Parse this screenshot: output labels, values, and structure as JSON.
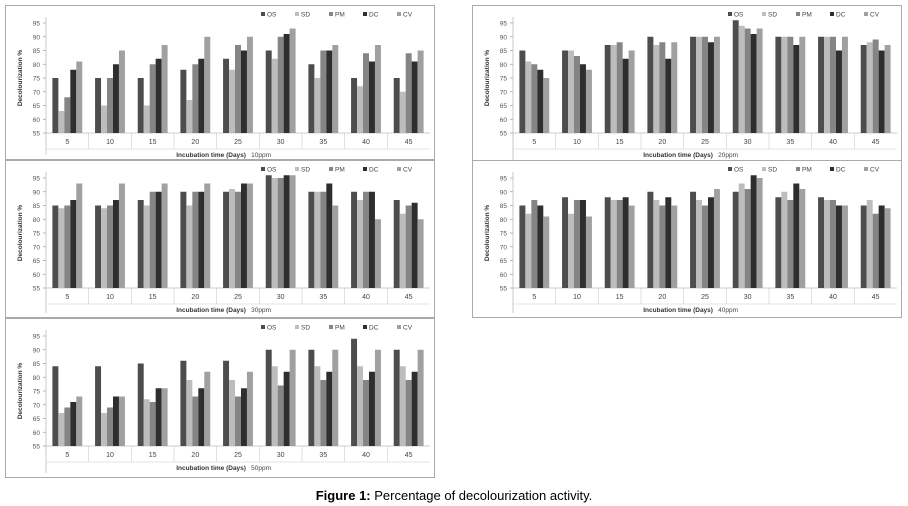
{
  "caption": {
    "label": "Figure 1:",
    "text": " Percentage of decolourization activity."
  },
  "colors": {
    "OS": "#4d4d4d",
    "SD": "#bdbdbd",
    "PM": "#858585",
    "DC": "#2e2e2e",
    "CV": "#a0a0a0"
  },
  "chart_data": [
    {
      "type": "bar",
      "title": "",
      "xlabel": "Incubation time (Days)",
      "xnote": "10ppm",
      "ylabel": "Decolourization %",
      "ylim": [
        55,
        95
      ],
      "yticks": [
        "55",
        "60",
        "65",
        "70",
        "75",
        "80",
        "85",
        "90",
        "95"
      ],
      "legend": "top-right",
      "categories": [
        "5",
        "10",
        "15",
        "20",
        "25",
        "30",
        "35",
        "40",
        "45"
      ],
      "series": [
        {
          "name": "OS",
          "values": [
            75,
            75,
            75,
            78,
            82,
            85,
            80,
            75,
            75
          ]
        },
        {
          "name": "SD",
          "values": [
            63,
            65,
            65,
            67,
            78,
            82,
            75,
            72,
            70
          ]
        },
        {
          "name": "PM",
          "values": [
            68,
            75,
            80,
            80,
            87,
            90,
            85,
            84,
            84
          ]
        },
        {
          "name": "DC",
          "values": [
            78,
            80,
            82,
            82,
            85,
            91,
            85,
            81,
            81
          ]
        },
        {
          "name": "CV",
          "values": [
            81,
            85,
            87,
            90,
            90,
            93,
            87,
            87,
            85
          ]
        }
      ]
    },
    {
      "type": "bar",
      "title": "",
      "xlabel": "Incubation time (Days)",
      "xnote": "20ppm",
      "ylabel": "Decolourization %",
      "ylim": [
        55,
        95
      ],
      "yticks": [
        "55",
        "60",
        "65",
        "70",
        "75",
        "80",
        "85",
        "90",
        "95"
      ],
      "legend": "top-right",
      "categories": [
        "5",
        "10",
        "15",
        "20",
        "25",
        "30",
        "35",
        "40",
        "45"
      ],
      "series": [
        {
          "name": "OS",
          "values": [
            85,
            85,
            87,
            90,
            90,
            96,
            90,
            90,
            87
          ]
        },
        {
          "name": "SD",
          "values": [
            81,
            85,
            87,
            87,
            90,
            94,
            90,
            90,
            88
          ]
        },
        {
          "name": "PM",
          "values": [
            80,
            83,
            88,
            88,
            90,
            93,
            90,
            90,
            89
          ]
        },
        {
          "name": "DC",
          "values": [
            78,
            80,
            82,
            82,
            88,
            91,
            87,
            85,
            85
          ]
        },
        {
          "name": "CV",
          "values": [
            75,
            78,
            85,
            88,
            90,
            93,
            90,
            90,
            87
          ]
        }
      ]
    },
    {
      "type": "bar",
      "title": "",
      "xlabel": "Incubation time (Days)",
      "xnote": "30ppm",
      "ylabel": "Decolourization %",
      "ylim": [
        55,
        95
      ],
      "yticks": [
        "55",
        "60",
        "65",
        "70",
        "75",
        "80",
        "85",
        "90",
        "95"
      ],
      "legend": "top-right",
      "categories": [
        "5",
        "10",
        "15",
        "20",
        "25",
        "30",
        "35",
        "40",
        "45"
      ],
      "series": [
        {
          "name": "OS",
          "values": [
            85,
            85,
            87,
            90,
            90,
            96,
            90,
            90,
            87
          ]
        },
        {
          "name": "SD",
          "values": [
            84,
            84,
            85,
            85,
            91,
            95,
            90,
            87,
            82
          ]
        },
        {
          "name": "PM",
          "values": [
            85,
            85,
            90,
            90,
            90,
            95,
            90,
            90,
            85
          ]
        },
        {
          "name": "DC",
          "values": [
            87,
            87,
            90,
            90,
            93,
            96,
            93,
            90,
            86
          ]
        },
        {
          "name": "CV",
          "values": [
            93,
            93,
            93,
            93,
            93,
            96,
            85,
            80,
            80
          ]
        }
      ]
    },
    {
      "type": "bar",
      "title": "",
      "xlabel": "Incubation time (Days)",
      "xnote": "40ppm",
      "ylabel": "Decolourization %",
      "ylim": [
        55,
        95
      ],
      "yticks": [
        "55",
        "60",
        "65",
        "70",
        "75",
        "80",
        "85",
        "90",
        "95"
      ],
      "legend": "top-right",
      "categories": [
        "5",
        "10",
        "15",
        "20",
        "25",
        "30",
        "35",
        "40",
        "45"
      ],
      "series": [
        {
          "name": "OS",
          "values": [
            85,
            88,
            88,
            90,
            90,
            90,
            88,
            88,
            85
          ]
        },
        {
          "name": "SD",
          "values": [
            82,
            82,
            87,
            87,
            87,
            93,
            90,
            87,
            87
          ]
        },
        {
          "name": "PM",
          "values": [
            87,
            87,
            87,
            85,
            85,
            91,
            87,
            87,
            82
          ]
        },
        {
          "name": "DC",
          "values": [
            85,
            87,
            88,
            88,
            88,
            96,
            93,
            85,
            85
          ]
        },
        {
          "name": "CV",
          "values": [
            81,
            81,
            85,
            85,
            91,
            95,
            91,
            85,
            84
          ]
        }
      ]
    },
    {
      "type": "bar",
      "title": "",
      "xlabel": "Incubation time (Days)",
      "xnote": "50ppm",
      "ylabel": "Decolourization %",
      "ylim": [
        55,
        95
      ],
      "yticks": [
        "55",
        "60",
        "65",
        "70",
        "75",
        "80",
        "85",
        "90",
        "95"
      ],
      "legend": "top-right",
      "categories": [
        "5",
        "10",
        "15",
        "20",
        "25",
        "30",
        "35",
        "40",
        "45"
      ],
      "series": [
        {
          "name": "OS",
          "values": [
            84,
            84,
            85,
            86,
            86,
            90,
            90,
            94,
            90
          ]
        },
        {
          "name": "SD",
          "values": [
            67,
            67,
            72,
            79,
            79,
            84,
            84,
            84,
            84
          ]
        },
        {
          "name": "PM",
          "values": [
            69,
            69,
            71,
            73,
            73,
            77,
            79,
            79,
            79
          ]
        },
        {
          "name": "DC",
          "values": [
            71,
            73,
            76,
            76,
            76,
            82,
            82,
            82,
            82
          ]
        },
        {
          "name": "CV",
          "values": [
            73,
            73,
            76,
            82,
            82,
            90,
            90,
            90,
            90
          ]
        }
      ]
    }
  ]
}
